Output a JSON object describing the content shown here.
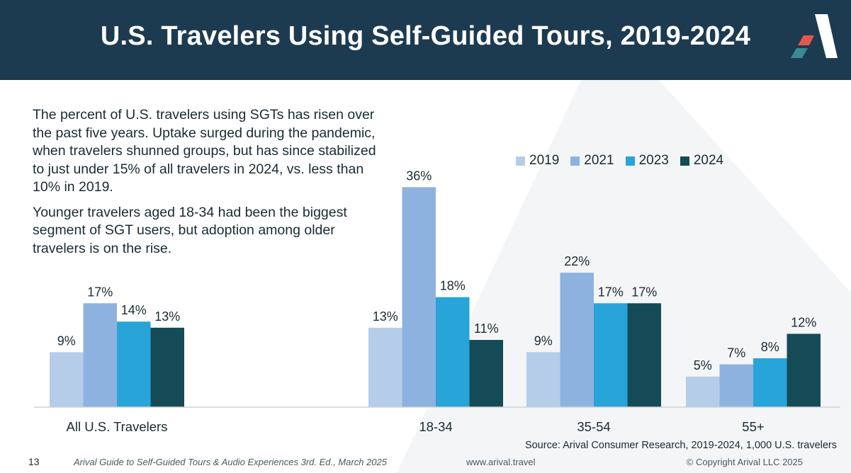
{
  "header": {
    "title": "U.S. Travelers Using Self-Guided Tours, 2019-2024"
  },
  "intro": {
    "paragraph1": "The percent of U.S. travelers using SGTs has risen over the past five years. Uptake surged during the pandemic, when travelers shunned groups, but has since stabilized to just under 15% of all travelers in 2024, vs. less than 10% in 2019.",
    "paragraph2": "Younger travelers aged 18-34 had been the biggest segment of SGT users, but adoption among older travelers is on the rise."
  },
  "colors": {
    "header_bg": "#1d3b50",
    "logo_red": "#e5574e",
    "logo_teal": "#3a8a95"
  },
  "chart_data": {
    "type": "bar",
    "title": "",
    "xlabel": "",
    "ylabel": "",
    "ylim": [
      0,
      40
    ],
    "legend": "top-right",
    "grid": false,
    "categories": [
      "All U.S. Travelers",
      "18-34",
      "35-54",
      "55+"
    ],
    "series": [
      {
        "name": "2019",
        "color": "#b5cde9",
        "values": [
          9,
          13,
          9,
          5
        ]
      },
      {
        "name": "2021",
        "color": "#8eb2e0",
        "values": [
          17,
          36,
          22,
          7
        ]
      },
      {
        "name": "2023",
        "color": "#29a4d9",
        "values": [
          14,
          18,
          17,
          8
        ]
      },
      {
        "name": "2024",
        "color": "#154b57",
        "values": [
          13,
          11,
          17,
          12
        ]
      }
    ],
    "value_suffix": "%"
  },
  "source": "Source: Arival Consumer Research, 2019-2024, 1,000 U.S. travelers",
  "footer": {
    "page_number": "13",
    "guide": "Arival Guide to Self-Guided Tours & Audio Experiences 3rd. Ed., March 2025",
    "url": "www.arival.travel",
    "copyright": "© Copyright Arival LLC 2025"
  }
}
